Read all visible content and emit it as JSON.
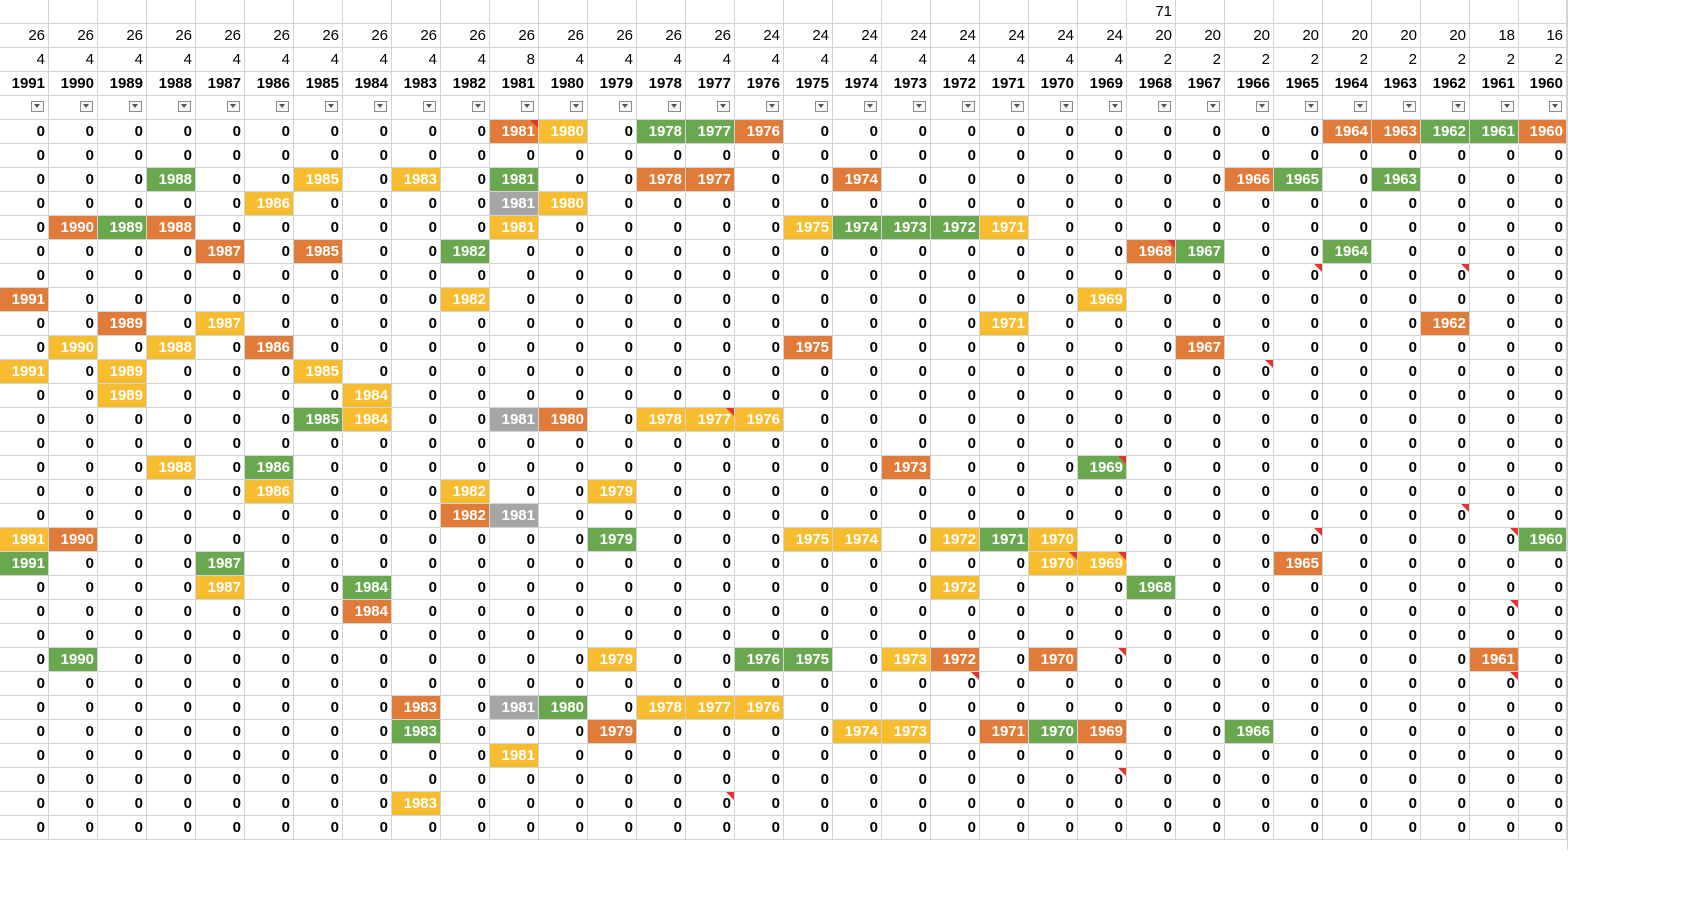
{
  "columns": [
    "1991",
    "1990",
    "1989",
    "1988",
    "1987",
    "1986",
    "1985",
    "1984",
    "1983",
    "1982",
    "1981",
    "1980",
    "1979",
    "1978",
    "1977",
    "1976",
    "1975",
    "1974",
    "1973",
    "1972",
    "1971",
    "1970",
    "1969",
    "1968",
    "1967",
    "1966",
    "1965",
    "1964",
    "1963",
    "1962",
    "1961",
    "1960"
  ],
  "top_values": [
    "",
    "",
    "",
    "",
    "",
    "",
    "",
    "",
    "",
    "",
    "",
    "",
    "",
    "",
    "",
    "",
    "",
    "",
    "",
    "",
    "",
    "",
    "",
    "71",
    "",
    "",
    "",
    "",
    "",
    "",
    "",
    ""
  ],
  "count_values": [
    "26",
    "26",
    "26",
    "26",
    "26",
    "26",
    "26",
    "26",
    "26",
    "26",
    "26",
    "26",
    "26",
    "26",
    "26",
    "24",
    "24",
    "24",
    "24",
    "24",
    "24",
    "24",
    "24",
    "20",
    "20",
    "20",
    "20",
    "20",
    "20",
    "20",
    "18",
    "16"
  ],
  "sub_values": [
    "4",
    "4",
    "4",
    "4",
    "4",
    "4",
    "4",
    "4",
    "4",
    "4",
    "8",
    "4",
    "4",
    "4",
    "4",
    "4",
    "4",
    "4",
    "4",
    "4",
    "4",
    "4",
    "4",
    "2",
    "2",
    "2",
    "2",
    "2",
    "2",
    "2",
    "2",
    "2"
  ],
  "filter_icon": "dropdown-arrow-icon",
  "colors": {
    "orange": "#e07b39",
    "yellow": "#f7bd2e",
    "green": "#6aa84f",
    "gray": "#a6a6a6",
    "note": "#e3342f",
    "grid": "#d4d4d4"
  },
  "rows": [
    [
      "0",
      "0",
      "0",
      "0",
      "0",
      "0",
      "0",
      "0",
      "0",
      "0",
      "1981",
      "1980",
      "0",
      "1978",
      "1977",
      "1976",
      "0",
      "0",
      "0",
      "0",
      "0",
      "0",
      "0",
      "0",
      "0",
      "0",
      "0",
      "1964",
      "1963",
      "1962",
      "1961",
      "1960"
    ],
    [
      "0",
      "0",
      "0",
      "0",
      "0",
      "0",
      "0",
      "0",
      "0",
      "0",
      "0",
      "0",
      "0",
      "0",
      "0",
      "0",
      "0",
      "0",
      "0",
      "0",
      "0",
      "0",
      "0",
      "0",
      "0",
      "0",
      "0",
      "0",
      "0",
      "0",
      "0",
      "0"
    ],
    [
      "0",
      "0",
      "0",
      "1988",
      "0",
      "0",
      "1985",
      "0",
      "1983",
      "0",
      "1981",
      "0",
      "0",
      "1978",
      "1977",
      "0",
      "0",
      "1974",
      "0",
      "0",
      "0",
      "0",
      "0",
      "0",
      "0",
      "1966",
      "1965",
      "0",
      "1963",
      "0",
      "0",
      "0"
    ],
    [
      "0",
      "0",
      "0",
      "0",
      "0",
      "1986",
      "0",
      "0",
      "0",
      "0",
      "1981",
      "1980",
      "0",
      "0",
      "0",
      "0",
      "0",
      "0",
      "0",
      "0",
      "0",
      "0",
      "0",
      "0",
      "0",
      "0",
      "0",
      "0",
      "0",
      "0",
      "0",
      "0"
    ],
    [
      "0",
      "1990",
      "1989",
      "1988",
      "0",
      "0",
      "0",
      "0",
      "0",
      "0",
      "1981",
      "0",
      "0",
      "0",
      "0",
      "0",
      "1975",
      "1974",
      "1973",
      "1972",
      "1971",
      "0",
      "0",
      "0",
      "0",
      "0",
      "0",
      "0",
      "0",
      "0",
      "0",
      "0"
    ],
    [
      "0",
      "0",
      "0",
      "0",
      "1987",
      "0",
      "1985",
      "0",
      "0",
      "1982",
      "0",
      "0",
      "0",
      "0",
      "0",
      "0",
      "0",
      "0",
      "0",
      "0",
      "0",
      "0",
      "0",
      "1968",
      "1967",
      "0",
      "0",
      "1964",
      "0",
      "0",
      "0",
      "0"
    ],
    [
      "0",
      "0",
      "0",
      "0",
      "0",
      "0",
      "0",
      "0",
      "0",
      "0",
      "0",
      "0",
      "0",
      "0",
      "0",
      "0",
      "0",
      "0",
      "0",
      "0",
      "0",
      "0",
      "0",
      "0",
      "0",
      "0",
      "0",
      "0",
      "0",
      "0",
      "0",
      "0"
    ],
    [
      "1991",
      "0",
      "0",
      "0",
      "0",
      "0",
      "0",
      "0",
      "0",
      "1982",
      "0",
      "0",
      "0",
      "0",
      "0",
      "0",
      "0",
      "0",
      "0",
      "0",
      "0",
      "0",
      "1969",
      "0",
      "0",
      "0",
      "0",
      "0",
      "0",
      "0",
      "0",
      "0"
    ],
    [
      "0",
      "0",
      "1989",
      "0",
      "1987",
      "0",
      "0",
      "0",
      "0",
      "0",
      "0",
      "0",
      "0",
      "0",
      "0",
      "0",
      "0",
      "0",
      "0",
      "0",
      "1971",
      "0",
      "0",
      "0",
      "0",
      "0",
      "0",
      "0",
      "0",
      "1962",
      "0",
      "0"
    ],
    [
      "0",
      "1990",
      "0",
      "1988",
      "0",
      "1986",
      "0",
      "0",
      "0",
      "0",
      "0",
      "0",
      "0",
      "0",
      "0",
      "0",
      "1975",
      "0",
      "0",
      "0",
      "0",
      "0",
      "0",
      "0",
      "1967",
      "0",
      "0",
      "0",
      "0",
      "0",
      "0",
      "0"
    ],
    [
      "1991",
      "0",
      "1989",
      "0",
      "0",
      "0",
      "1985",
      "0",
      "0",
      "0",
      "0",
      "0",
      "0",
      "0",
      "0",
      "0",
      "0",
      "0",
      "0",
      "0",
      "0",
      "0",
      "0",
      "0",
      "0",
      "0",
      "0",
      "0",
      "0",
      "0",
      "0",
      "0"
    ],
    [
      "0",
      "0",
      "1989",
      "0",
      "0",
      "0",
      "0",
      "1984",
      "0",
      "0",
      "0",
      "0",
      "0",
      "0",
      "0",
      "0",
      "0",
      "0",
      "0",
      "0",
      "0",
      "0",
      "0",
      "0",
      "0",
      "0",
      "0",
      "0",
      "0",
      "0",
      "0",
      "0"
    ],
    [
      "0",
      "0",
      "0",
      "0",
      "0",
      "0",
      "1985",
      "1984",
      "0",
      "0",
      "1981",
      "1980",
      "0",
      "1978",
      "1977",
      "1976",
      "0",
      "0",
      "0",
      "0",
      "0",
      "0",
      "0",
      "0",
      "0",
      "0",
      "0",
      "0",
      "0",
      "0",
      "0",
      "0"
    ],
    [
      "0",
      "0",
      "0",
      "0",
      "0",
      "0",
      "0",
      "0",
      "0",
      "0",
      "0",
      "0",
      "0",
      "0",
      "0",
      "0",
      "0",
      "0",
      "0",
      "0",
      "0",
      "0",
      "0",
      "0",
      "0",
      "0",
      "0",
      "0",
      "0",
      "0",
      "0",
      "0"
    ],
    [
      "0",
      "0",
      "0",
      "1988",
      "0",
      "1986",
      "0",
      "0",
      "0",
      "0",
      "0",
      "0",
      "0",
      "0",
      "0",
      "0",
      "0",
      "0",
      "1973",
      "0",
      "0",
      "0",
      "1969",
      "0",
      "0",
      "0",
      "0",
      "0",
      "0",
      "0",
      "0",
      "0"
    ],
    [
      "0",
      "0",
      "0",
      "0",
      "0",
      "1986",
      "0",
      "0",
      "0",
      "1982",
      "0",
      "0",
      "1979",
      "0",
      "0",
      "0",
      "0",
      "0",
      "0",
      "0",
      "0",
      "0",
      "0",
      "0",
      "0",
      "0",
      "0",
      "0",
      "0",
      "0",
      "0",
      "0"
    ],
    [
      "0",
      "0",
      "0",
      "0",
      "0",
      "0",
      "0",
      "0",
      "0",
      "1982",
      "1981",
      "0",
      "0",
      "0",
      "0",
      "0",
      "0",
      "0",
      "0",
      "0",
      "0",
      "0",
      "0",
      "0",
      "0",
      "0",
      "0",
      "0",
      "0",
      "0",
      "0",
      "0"
    ],
    [
      "1991",
      "1990",
      "0",
      "0",
      "0",
      "0",
      "0",
      "0",
      "0",
      "0",
      "0",
      "0",
      "1979",
      "0",
      "0",
      "0",
      "1975",
      "1974",
      "0",
      "1972",
      "1971",
      "1970",
      "0",
      "0",
      "0",
      "0",
      "0",
      "0",
      "0",
      "0",
      "0",
      "1960"
    ],
    [
      "1991",
      "0",
      "0",
      "0",
      "1987",
      "0",
      "0",
      "0",
      "0",
      "0",
      "0",
      "0",
      "0",
      "0",
      "0",
      "0",
      "0",
      "0",
      "0",
      "0",
      "0",
      "1970",
      "1969",
      "0",
      "0",
      "0",
      "1965",
      "0",
      "0",
      "0",
      "0",
      "0"
    ],
    [
      "0",
      "0",
      "0",
      "0",
      "1987",
      "0",
      "0",
      "1984",
      "0",
      "0",
      "0",
      "0",
      "0",
      "0",
      "0",
      "0",
      "0",
      "0",
      "0",
      "1972",
      "0",
      "0",
      "0",
      "1968",
      "0",
      "0",
      "0",
      "0",
      "0",
      "0",
      "0",
      "0"
    ],
    [
      "0",
      "0",
      "0",
      "0",
      "0",
      "0",
      "0",
      "1984",
      "0",
      "0",
      "0",
      "0",
      "0",
      "0",
      "0",
      "0",
      "0",
      "0",
      "0",
      "0",
      "0",
      "0",
      "0",
      "0",
      "0",
      "0",
      "0",
      "0",
      "0",
      "0",
      "0",
      "0"
    ],
    [
      "0",
      "0",
      "0",
      "0",
      "0",
      "0",
      "0",
      "0",
      "0",
      "0",
      "0",
      "0",
      "0",
      "0",
      "0",
      "0",
      "0",
      "0",
      "0",
      "0",
      "0",
      "0",
      "0",
      "0",
      "0",
      "0",
      "0",
      "0",
      "0",
      "0",
      "0",
      "0"
    ],
    [
      "0",
      "1990",
      "0",
      "0",
      "0",
      "0",
      "0",
      "0",
      "0",
      "0",
      "0",
      "0",
      "1979",
      "0",
      "0",
      "1976",
      "1975",
      "0",
      "1973",
      "1972",
      "0",
      "1970",
      "0",
      "0",
      "0",
      "0",
      "0",
      "0",
      "0",
      "0",
      "1961",
      "0"
    ],
    [
      "0",
      "0",
      "0",
      "0",
      "0",
      "0",
      "0",
      "0",
      "0",
      "0",
      "0",
      "0",
      "0",
      "0",
      "0",
      "0",
      "0",
      "0",
      "0",
      "0",
      "0",
      "0",
      "0",
      "0",
      "0",
      "0",
      "0",
      "0",
      "0",
      "0",
      "0",
      "0"
    ],
    [
      "0",
      "0",
      "0",
      "0",
      "0",
      "0",
      "0",
      "0",
      "1983",
      "0",
      "1981",
      "1980",
      "0",
      "1978",
      "1977",
      "1976",
      "0",
      "0",
      "0",
      "0",
      "0",
      "0",
      "0",
      "0",
      "0",
      "0",
      "0",
      "0",
      "0",
      "0",
      "0",
      "0"
    ],
    [
      "0",
      "0",
      "0",
      "0",
      "0",
      "0",
      "0",
      "0",
      "1983",
      "0",
      "0",
      "0",
      "1979",
      "0",
      "0",
      "0",
      "0",
      "1974",
      "1973",
      "0",
      "1971",
      "1970",
      "1969",
      "0",
      "0",
      "1966",
      "0",
      "0",
      "0",
      "0",
      "0",
      "0"
    ],
    [
      "0",
      "0",
      "0",
      "0",
      "0",
      "0",
      "0",
      "0",
      "0",
      "0",
      "1981",
      "0",
      "0",
      "0",
      "0",
      "0",
      "0",
      "0",
      "0",
      "0",
      "0",
      "0",
      "0",
      "0",
      "0",
      "0",
      "0",
      "0",
      "0",
      "0",
      "0",
      "0"
    ],
    [
      "0",
      "0",
      "0",
      "0",
      "0",
      "0",
      "0",
      "0",
      "0",
      "0",
      "0",
      "0",
      "0",
      "0",
      "0",
      "0",
      "0",
      "0",
      "0",
      "0",
      "0",
      "0",
      "0",
      "0",
      "0",
      "0",
      "0",
      "0",
      "0",
      "0",
      "0",
      "0"
    ],
    [
      "0",
      "0",
      "0",
      "0",
      "0",
      "0",
      "0",
      "0",
      "1983",
      "0",
      "0",
      "0",
      "0",
      "0",
      "0",
      "0",
      "0",
      "0",
      "0",
      "0",
      "0",
      "0",
      "0",
      "0",
      "0",
      "0",
      "0",
      "0",
      "0",
      "0",
      "0",
      "0"
    ],
    [
      "0",
      "0",
      "0",
      "0",
      "0",
      "0",
      "0",
      "0",
      "0",
      "0",
      "0",
      "0",
      "0",
      "0",
      "0",
      "0",
      "0",
      "0",
      "0",
      "0",
      "0",
      "0",
      "0",
      "0",
      "0",
      "0",
      "0",
      "0",
      "0",
      "0",
      "0",
      "0"
    ]
  ],
  "fill_colors": [
    [
      "",
      "",
      "",
      "",
      "",
      "",
      "",
      "",
      "",
      "",
      "orange",
      "yellow",
      "",
      "green",
      "green",
      "orange",
      "",
      "",
      "",
      "",
      "",
      "",
      "",
      "",
      "",
      "",
      "",
      "orange",
      "orange",
      "green",
      "green",
      "orange"
    ],
    [],
    [
      "",
      "",
      "",
      "green",
      "",
      "",
      "yellow",
      "",
      "yellow",
      "",
      "green",
      "",
      "",
      "orange",
      "orange",
      "",
      "",
      "orange",
      "",
      "",
      "",
      "",
      "",
      "",
      "",
      "orange",
      "green",
      "",
      "green",
      "",
      "",
      ""
    ],
    [
      "",
      "",
      "",
      "",
      "",
      "yellow",
      "",
      "",
      "",
      "",
      "gray",
      "yellow"
    ],
    [
      "",
      "orange",
      "green",
      "orange",
      "",
      "",
      "",
      "",
      "",
      "",
      "yellow",
      "",
      "",
      "",
      "",
      "",
      "yellow",
      "green",
      "green",
      "green",
      "yellow"
    ],
    [
      "",
      "",
      "",
      "",
      "orange",
      "",
      "orange",
      "",
      "",
      "green",
      "",
      "",
      "",
      "",
      "",
      "",
      "",
      "",
      "",
      "",
      "",
      "",
      "",
      "orange",
      "green",
      "",
      "",
      "green"
    ],
    [],
    [
      "orange",
      "",
      "",
      "",
      "",
      "",
      "",
      "",
      "",
      "yellow",
      "",
      "",
      "",
      "",
      "",
      "",
      "",
      "",
      "",
      "",
      "",
      "",
      "yellow"
    ],
    [
      "",
      "",
      "orange",
      "",
      "yellow",
      "",
      "",
      "",
      "",
      "",
      "",
      "",
      "",
      "",
      "",
      "",
      "",
      "",
      "",
      "",
      "yellow",
      "",
      "",
      "",
      "",
      "",
      "",
      "",
      "",
      "orange"
    ],
    [
      "",
      "yellow",
      "",
      "yellow",
      "",
      "orange",
      "",
      "",
      "",
      "",
      "",
      "",
      "",
      "",
      "",
      "",
      "orange",
      "",
      "",
      "",
      "",
      "",
      "",
      "",
      "orange"
    ],
    [
      "yellow",
      "",
      "yellow",
      "",
      "",
      "",
      "yellow"
    ],
    [
      "",
      "",
      "yellow",
      "",
      "",
      "",
      "",
      "yellow"
    ],
    [
      "",
      "",
      "",
      "",
      "",
      "",
      "green",
      "yellow",
      "",
      "",
      "gray",
      "orange",
      "",
      "yellow",
      "yellow",
      "yellow"
    ],
    [],
    [
      "",
      "",
      "",
      "yellow",
      "",
      "green",
      "",
      "",
      "",
      "",
      "",
      "",
      "",
      "",
      "",
      "",
      "",
      "",
      "orange",
      "",
      "",
      "",
      "green"
    ],
    [
      "",
      "",
      "",
      "",
      "",
      "yellow",
      "",
      "",
      "",
      "yellow",
      "",
      "",
      "yellow"
    ],
    [
      "",
      "",
      "",
      "",
      "",
      "",
      "",
      "",
      "",
      "orange",
      "gray"
    ],
    [
      "yellow",
      "orange",
      "",
      "",
      "",
      "",
      "",
      "",
      "",
      "",
      "",
      "",
      "green",
      "",
      "",
      "",
      "yellow",
      "yellow",
      "",
      "yellow",
      "green",
      "yellow",
      "",
      "",
      "",
      "",
      "",
      "",
      "",
      "",
      "",
      "green"
    ],
    [
      "green",
      "",
      "",
      "",
      "green",
      "",
      "",
      "",
      "",
      "",
      "",
      "",
      "",
      "",
      "",
      "",
      "",
      "",
      "",
      "",
      "",
      "yellow",
      "yellow",
      "",
      "",
      "",
      "orange"
    ],
    [
      "",
      "",
      "",
      "",
      "yellow",
      "",
      "",
      "green",
      "",
      "",
      "",
      "",
      "",
      "",
      "",
      "",
      "",
      "",
      "",
      "yellow",
      "",
      "",
      "",
      "green"
    ],
    [
      "",
      "",
      "",
      "",
      "",
      "",
      "",
      "orange"
    ],
    [],
    [
      "",
      "green",
      "",
      "",
      "",
      "",
      "",
      "",
      "",
      "",
      "",
      "",
      "yellow",
      "",
      "",
      "green",
      "green",
      "",
      "yellow",
      "orange",
      "",
      "orange",
      "",
      "",
      "",
      "",
      "",
      "",
      "",
      "",
      "orange"
    ],
    [],
    [
      "",
      "",
      "",
      "",
      "",
      "",
      "",
      "",
      "orange",
      "",
      "gray",
      "green",
      "",
      "yellow",
      "yellow",
      "yellow"
    ],
    [
      "",
      "",
      "",
      "",
      "",
      "",
      "",
      "",
      "green",
      "",
      "",
      "",
      "orange",
      "",
      "",
      "",
      "",
      "yellow",
      "yellow",
      "",
      "orange",
      "green",
      "orange",
      "",
      "",
      "green"
    ],
    [
      "",
      "",
      "",
      "",
      "",
      "",
      "",
      "",
      "",
      "",
      "yellow"
    ],
    [],
    [
      "",
      "",
      "",
      "",
      "",
      "",
      "",
      "",
      "yellow"
    ],
    []
  ],
  "note_flags": [
    [
      0,
      10
    ],
    [
      5,
      23
    ],
    [
      6,
      26
    ],
    [
      6,
      29
    ],
    [
      10,
      25
    ],
    [
      12,
      14
    ],
    [
      14,
      22
    ],
    [
      16,
      29
    ],
    [
      17,
      26
    ],
    [
      17,
      30
    ],
    [
      18,
      21
    ],
    [
      18,
      22
    ],
    [
      20,
      30
    ],
    [
      22,
      22
    ],
    [
      23,
      19
    ],
    [
      23,
      30
    ],
    [
      27,
      22
    ],
    [
      28,
      14
    ]
  ]
}
